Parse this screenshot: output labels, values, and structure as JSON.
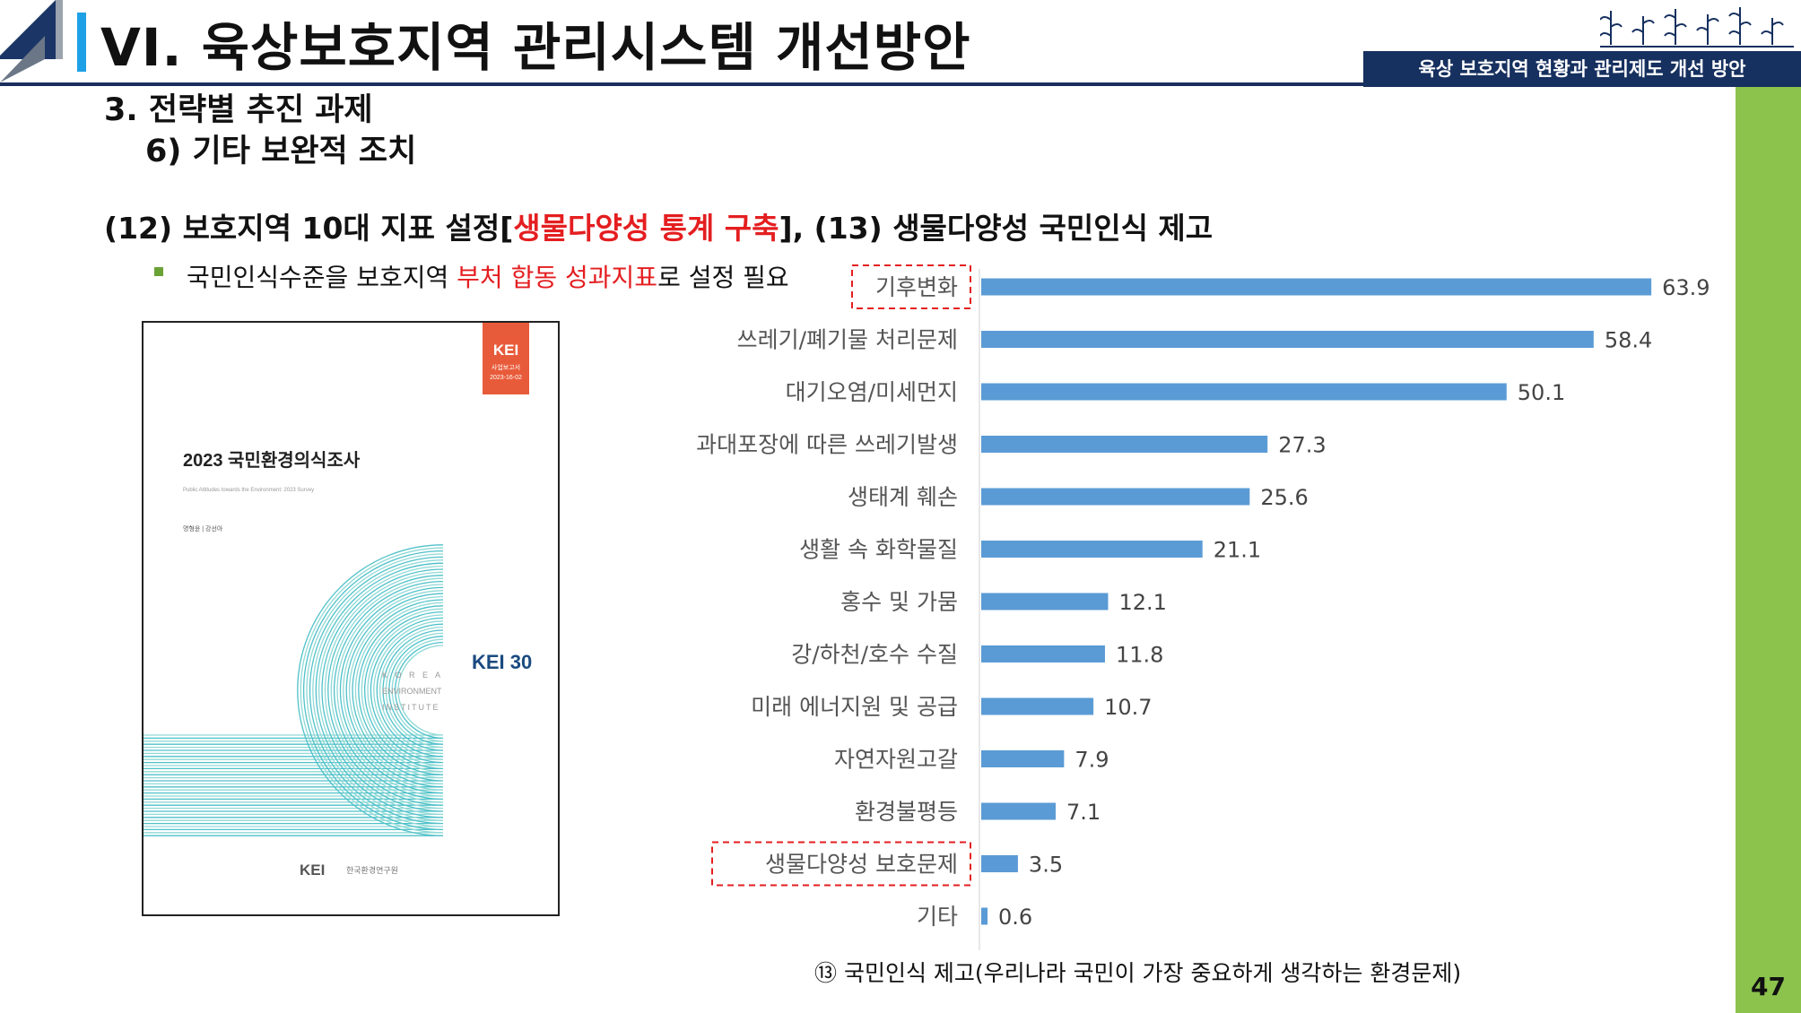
{
  "header": {
    "title": "VI. 육상보호지역 관리시스템 개선방안",
    "subtitle": "육상 보호지역 현황과 관리제도 개선 방안",
    "accent_color": "#1ea0e6",
    "navy_color": "#16305f",
    "green_color": "#8cc34d"
  },
  "page_number": "47",
  "section": {
    "line1": "3. 전략별 추진 과제",
    "line2": "6) 기타 보완적 조치"
  },
  "headline": {
    "part1": "(12) 보호지역 10대 지표 설정[",
    "highlight": "생물다양성 통계 구축",
    "part2": "], (13) 생물다양성 국민인식 제고"
  },
  "bullet": {
    "before": "국민인식수준을 보호지역 ",
    "highlight": "부처 합동 성과지표",
    "after": "로 설정 필요"
  },
  "report_cover": {
    "badge_title": "KEI",
    "badge_line1": "사업보고서",
    "badge_line2": "2023-16-02",
    "title": "2023 국민환경의식조사",
    "subtitle_en": "Public Attitudes towards the Environment: 2023 Survey",
    "authors": "명형윤 | 강선아",
    "side_line1": "K O R E A",
    "side_line2": "ENVIRONMENT",
    "side_line3": "INSTITUTE",
    "anniv_logo": "KEI 30",
    "footer_logo": "KEI",
    "footer_org": "한국환경연구원"
  },
  "chart_data": {
    "type": "bar",
    "orientation": "horizontal",
    "categories": [
      "기후변화",
      "쓰레기/폐기물 처리문제",
      "대기오염/미세먼지",
      "과대포장에 따른 쓰레기발생",
      "생태계 훼손",
      "생활 속 화학물질",
      "홍수 및 가뭄",
      "강/하천/호수 수질",
      "미래 에너지원 및 공급",
      "자연자원고갈",
      "환경불평등",
      "생물다양성 보호문제",
      "기타"
    ],
    "values": [
      63.9,
      58.4,
      50.1,
      27.3,
      25.6,
      21.1,
      12.1,
      11.8,
      10.7,
      7.9,
      7.1,
      3.5,
      0.6
    ],
    "labels": [
      "63.9",
      "58.4",
      "50.1",
      "27.3",
      "25.6",
      "21.1",
      "12.1",
      "11.8",
      "10.7",
      "7.9",
      "7.1",
      "3.5",
      "0.6"
    ],
    "highlighted": [
      "기후변화",
      "생물다양성 보호문제"
    ],
    "xlim": [
      0,
      65
    ],
    "bar_color": "#5b9bd5",
    "highlight_color": "#e41e20",
    "title": "⑬ 국민인식 제고(우리나라 국민이 가장 중요하게 생각하는 환경문제)"
  }
}
